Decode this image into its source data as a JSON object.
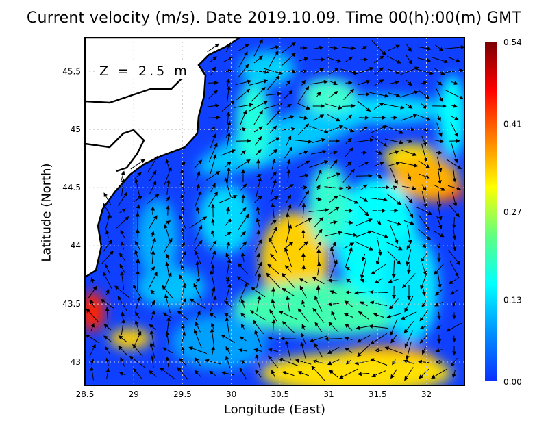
{
  "title": "Current velocity (m/s). Date 2019.10.09. Time 00(h):00(m) GMT",
  "depth_label": "Z = 2.5 m",
  "xlabel": "Longitude (East)",
  "ylabel": "Latitude (North)",
  "x_ticks": [
    "28.5",
    "29",
    "29.5",
    "30",
    "30.5",
    "31",
    "31.5",
    "32"
  ],
  "y_ticks": [
    "45.5",
    "45",
    "44.5",
    "44",
    "43.5",
    "43"
  ],
  "x_range": [
    28.5,
    32.39
  ],
  "y_range": [
    42.8,
    45.79
  ],
  "colorbar": {
    "ticks": [
      "0.54",
      "0.41",
      "0.27",
      "0.13",
      "0.00"
    ],
    "range": [
      0,
      0.54
    ],
    "colors": [
      "#0a30ff",
      "#0090ff",
      "#00ffff",
      "#60ff80",
      "#ffff00",
      "#ff8000",
      "#ff0000",
      "#7a0000"
    ]
  },
  "colors": {
    "land": "#ffffff",
    "coast": "#000000",
    "water_low": "#1040ff"
  }
}
